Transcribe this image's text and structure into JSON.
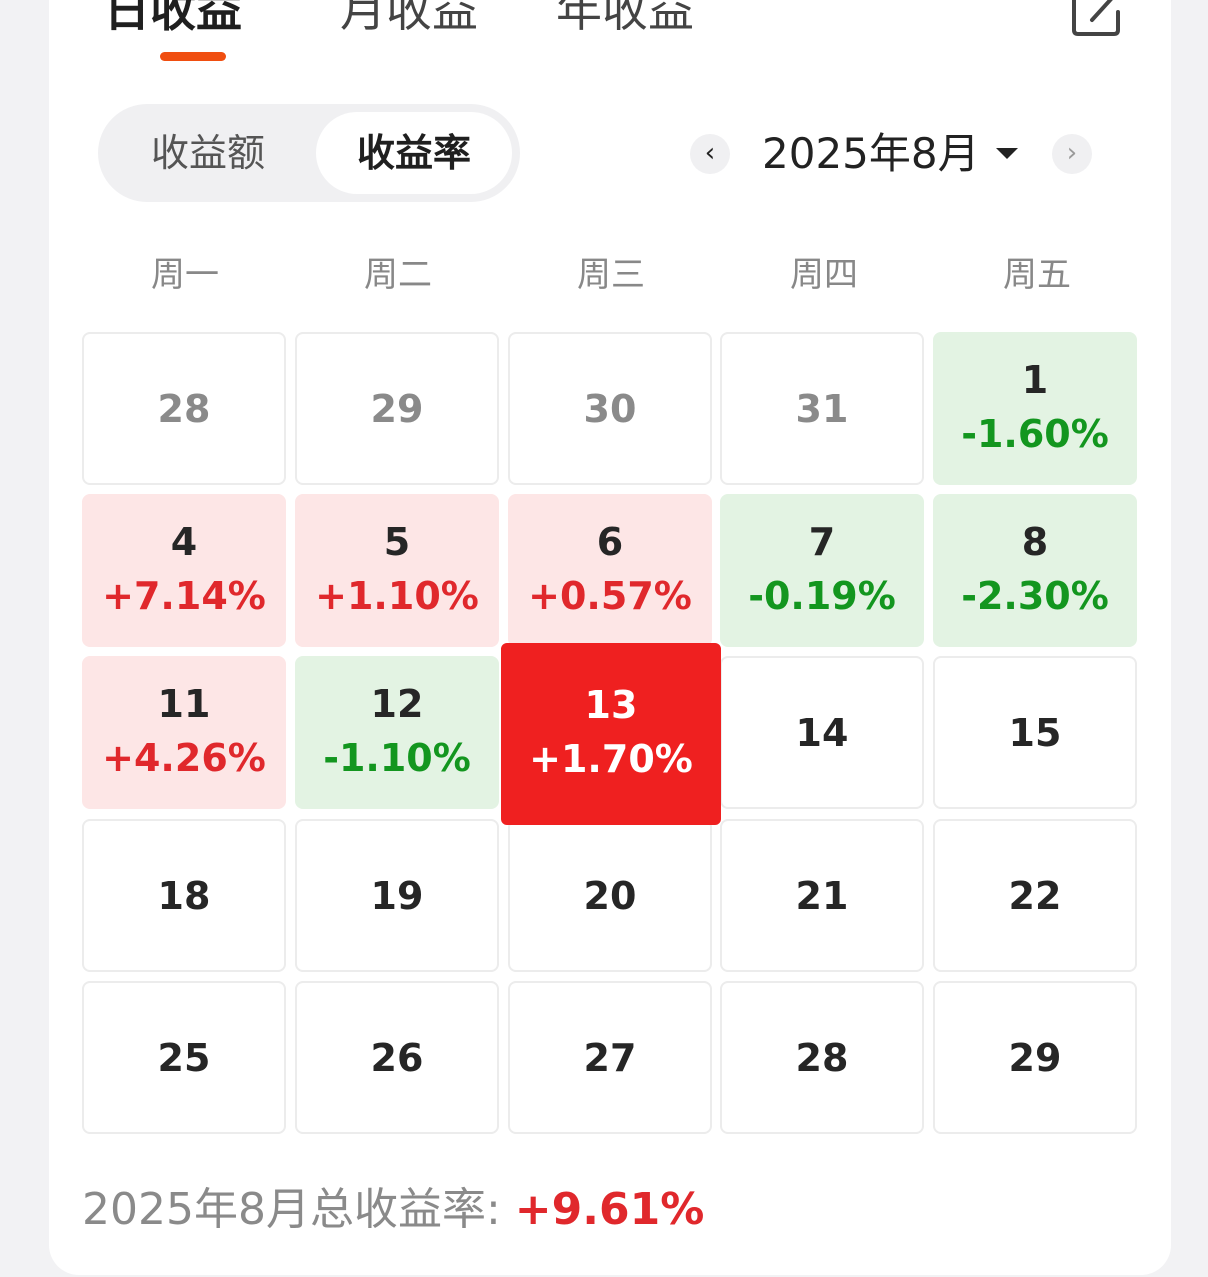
{
  "tabs": [
    {
      "label": "日收益",
      "active": true
    },
    {
      "label": "月收益",
      "active": false
    },
    {
      "label": "年收益",
      "active": false
    }
  ],
  "header": {
    "share_icon": "share-icon"
  },
  "segment": {
    "options": [
      "收益额",
      "收益率"
    ],
    "selected": "收益率"
  },
  "month_nav": {
    "label": "2025年8月",
    "prev_icon": "‹",
    "next_icon": "›"
  },
  "weekdays": [
    "周一",
    "周二",
    "周三",
    "周四",
    "周五"
  ],
  "calendar": {
    "weeks": [
      [
        {
          "day": "28",
          "rate": "",
          "tone": "other"
        },
        {
          "day": "29",
          "rate": "",
          "tone": "other"
        },
        {
          "day": "30",
          "rate": "",
          "tone": "other"
        },
        {
          "day": "31",
          "rate": "",
          "tone": "other"
        },
        {
          "day": "1",
          "rate": "-1.60%",
          "tone": "down"
        }
      ],
      [
        {
          "day": "4",
          "rate": "+7.14%",
          "tone": "up"
        },
        {
          "day": "5",
          "rate": "+1.10%",
          "tone": "up"
        },
        {
          "day": "6",
          "rate": "+0.57%",
          "tone": "up"
        },
        {
          "day": "7",
          "rate": "-0.19%",
          "tone": "down"
        },
        {
          "day": "8",
          "rate": "-2.30%",
          "tone": "down"
        }
      ],
      [
        {
          "day": "11",
          "rate": "+4.26%",
          "tone": "up"
        },
        {
          "day": "12",
          "rate": "-1.10%",
          "tone": "down"
        },
        {
          "day": "13",
          "rate": "+1.70%",
          "tone": "selected"
        },
        {
          "day": "14",
          "rate": "",
          "tone": "none"
        },
        {
          "day": "15",
          "rate": "",
          "tone": "none"
        }
      ],
      [
        {
          "day": "18",
          "rate": "",
          "tone": "none"
        },
        {
          "day": "19",
          "rate": "",
          "tone": "none"
        },
        {
          "day": "20",
          "rate": "",
          "tone": "none"
        },
        {
          "day": "21",
          "rate": "",
          "tone": "none"
        },
        {
          "day": "22",
          "rate": "",
          "tone": "none"
        }
      ],
      [
        {
          "day": "25",
          "rate": "",
          "tone": "none"
        },
        {
          "day": "26",
          "rate": "",
          "tone": "none"
        },
        {
          "day": "27",
          "rate": "",
          "tone": "none"
        },
        {
          "day": "28",
          "rate": "",
          "tone": "none"
        },
        {
          "day": "29",
          "rate": "",
          "tone": "none"
        }
      ]
    ]
  },
  "summary": {
    "label": "2025年8月总收益率: ",
    "value": "+9.61%"
  },
  "colors": {
    "accent": "#f04e10",
    "up": "#e0282c",
    "down": "#13961f",
    "up_bg": "#fde6e6",
    "down_bg": "#e3f3e3",
    "selected_bg": "#ef2020"
  }
}
